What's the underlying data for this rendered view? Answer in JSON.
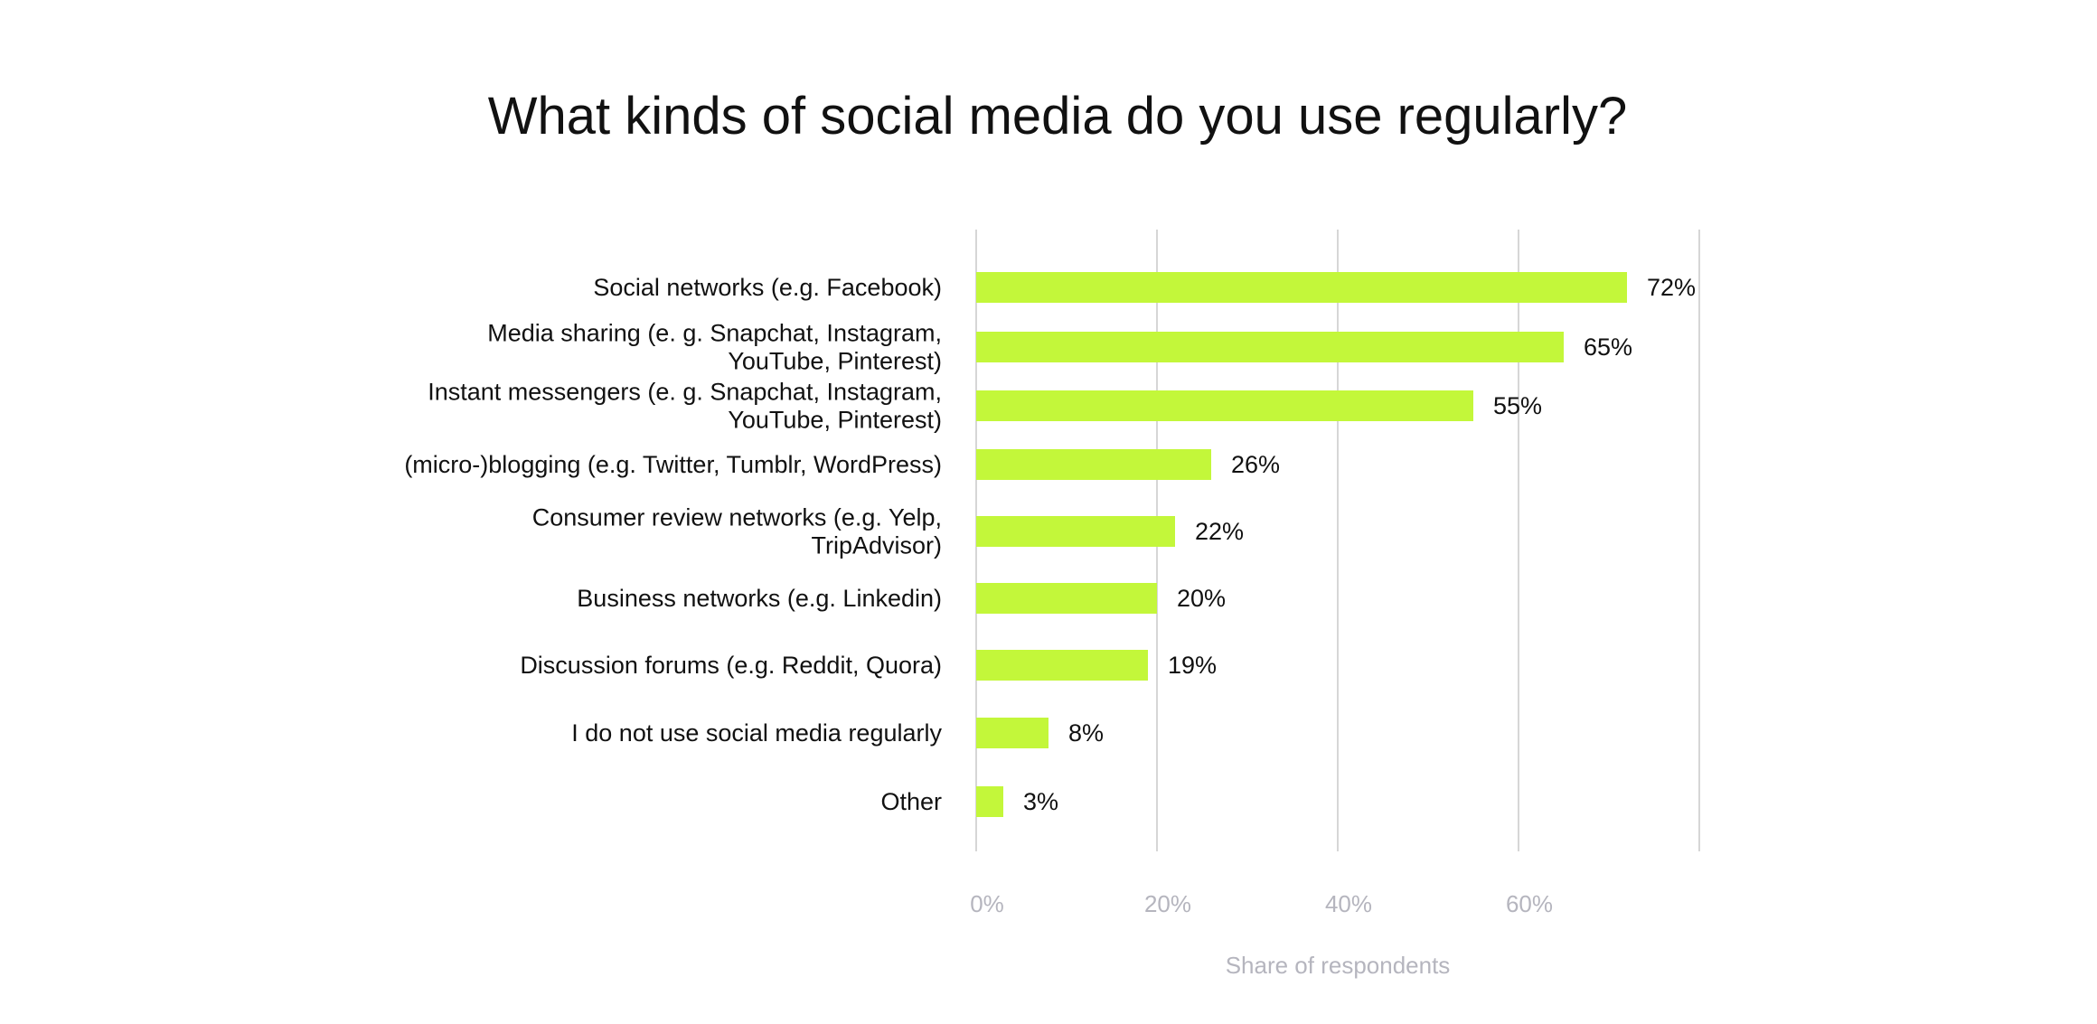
{
  "chart_data": {
    "type": "bar",
    "orientation": "horizontal",
    "title": "What kinds of social media do you use regularly?",
    "xlabel": "Share of respondents",
    "ylabel": "",
    "xlim": [
      0,
      80
    ],
    "x_ticks": [
      0,
      20,
      40,
      60,
      80
    ],
    "x_tick_labels": [
      "0%",
      "20%",
      "40%",
      "60%",
      ""
    ],
    "grid": true,
    "categories": [
      [
        "Social networks (e.g. Facebook)"
      ],
      [
        "Media sharing (e. g. Snapchat, Instagram,",
        "YouTube, Pinterest)"
      ],
      [
        "Instant messengers (e. g. Snapchat, Instagram,",
        "YouTube, Pinterest)"
      ],
      [
        "(micro-)blogging (e.g. Twitter, Tumblr, WordPress)"
      ],
      [
        "Consumer review networks (e.g. Yelp,",
        "TripAdvisor)"
      ],
      [
        "Business networks (e.g. Linkedin)"
      ],
      [
        "Discussion forums (e.g. Reddit, Quora)"
      ],
      [
        "I do not use social media regularly"
      ],
      [
        "Other"
      ]
    ],
    "values": [
      72,
      65,
      55,
      26,
      22,
      20,
      19,
      8,
      3
    ],
    "data_labels": [
      "72%",
      "65%",
      "55%",
      "26%",
      "22%",
      "20%",
      "19%",
      "8%",
      "3%"
    ],
    "colors": {
      "bar": "#c3f73a",
      "grid": "#d6d6d6",
      "text": "#111111",
      "axis_text": "#b5b5be"
    }
  }
}
